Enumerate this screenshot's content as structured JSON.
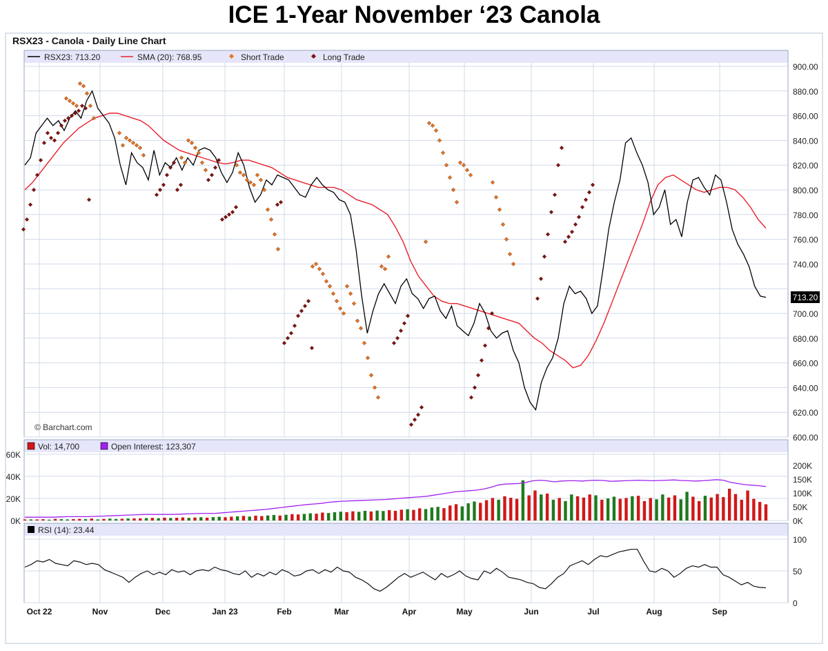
{
  "page": {
    "title": "ICE 1-Year November ‘23 Canola"
  },
  "chart": {
    "header": "RSX23 - Canola - Daily Line Chart",
    "copyright": "© Barchart.com",
    "last_price_badge": "713.20",
    "colors": {
      "price": "#000000",
      "sma": "#e8202a",
      "short_trade": "#e8741e",
      "long_trade": "#7a1414",
      "open_interest": "#a020f0",
      "vol_up": "#1f7a1f",
      "vol_down": "#d01818",
      "legend_bg": "#e6e6fa",
      "grid": "#d0d8e8"
    }
  },
  "chart_data": [
    {
      "type": "line",
      "title": "RSX23 - Canola - Daily Line Chart",
      "legend": [
        "RSX23: 713.20",
        "SMA (20): 768.95",
        "Short Trade",
        "Long Trade"
      ],
      "legend_placement": "top",
      "x_ticks": [
        "Oct 22",
        "Nov",
        "Dec",
        "Jan 23",
        "Feb",
        "Mar",
        "Apr",
        "May",
        "Jun",
        "Jul",
        "Aug",
        "Sep"
      ],
      "y_ticks": [
        "900.00",
        "880.00",
        "860.00",
        "840.00",
        "820.00",
        "800.00",
        "780.00",
        "760.00",
        "740.00",
        "720.00",
        "700.00",
        "680.00",
        "660.00",
        "640.00",
        "620.00",
        "600.00"
      ],
      "ylim": [
        600,
        900
      ],
      "grid": true,
      "series": [
        {
          "name": "RSX23: 713.20",
          "kind": "price",
          "values": [
            820,
            826,
            846,
            852,
            858,
            852,
            856,
            848,
            858,
            864,
            858,
            872,
            880,
            866,
            860,
            854,
            842,
            820,
            804,
            830,
            822,
            818,
            808,
            832,
            812,
            822,
            818,
            826,
            816,
            826,
            820,
            832,
            834,
            832,
            826,
            814,
            806,
            814,
            830,
            820,
            802,
            790,
            796,
            808,
            804,
            812,
            810,
            808,
            802,
            796,
            794,
            804,
            810,
            804,
            800,
            798,
            792,
            790,
            780,
            752,
            714,
            684,
            702,
            716,
            724,
            716,
            708,
            722,
            728,
            716,
            712,
            704,
            712,
            714,
            702,
            696,
            706,
            690,
            686,
            682,
            692,
            708,
            700,
            686,
            680,
            684,
            686,
            670,
            660,
            640,
            628,
            622,
            644,
            656,
            664,
            680,
            708,
            722,
            716,
            718,
            712,
            700,
            706,
            736,
            768,
            790,
            808,
            838,
            842,
            830,
            820,
            806,
            780,
            786,
            800,
            772,
            776,
            762,
            790,
            808,
            810,
            802,
            796,
            812,
            808,
            790,
            768,
            756,
            748,
            738,
            722,
            714,
            713
          ]
        },
        {
          "name": "SMA (20): 768.95",
          "kind": "sma",
          "values": [
            800,
            806,
            814,
            822,
            830,
            838,
            844,
            850,
            854,
            858,
            860,
            862,
            862,
            860,
            858,
            856,
            852,
            846,
            840,
            836,
            832,
            830,
            828,
            826,
            824,
            822,
            821,
            822,
            824,
            824,
            822,
            820,
            818,
            814,
            810,
            808,
            806,
            804,
            802,
            802,
            802,
            800,
            796,
            792,
            790,
            788,
            784,
            780,
            770,
            758,
            742,
            730,
            722,
            714,
            710,
            708,
            708,
            706,
            704,
            702,
            700,
            698,
            696,
            694,
            692,
            686,
            680,
            676,
            670,
            666,
            662,
            656,
            658,
            666,
            678,
            692,
            708,
            724,
            740,
            756,
            772,
            790,
            804,
            810,
            812,
            808,
            804,
            800,
            798,
            800,
            802,
            802,
            800,
            794,
            786,
            776,
            769
          ]
        },
        {
          "name": "Short Trade",
          "kind": "short",
          "values": [
            874,
            872,
            870,
            868,
            886,
            884,
            878,
            868,
            858,
            846,
            836,
            842,
            840,
            838,
            836,
            834,
            828,
            826,
            822,
            840,
            838,
            834,
            830,
            822,
            816,
            820,
            814,
            812,
            808,
            806,
            804,
            812,
            808,
            800,
            784,
            776,
            764,
            752,
            738,
            740,
            736,
            732,
            726,
            722,
            716,
            710,
            704,
            700,
            722,
            716,
            708,
            694,
            688,
            676,
            664,
            650,
            640,
            632,
            738,
            736,
            746,
            758,
            854,
            852,
            848,
            840,
            830,
            820,
            810,
            800,
            790,
            822,
            820,
            816,
            812,
            806,
            794,
            784,
            772,
            760,
            748,
            740
          ]
        },
        {
          "name": "Long Trade",
          "kind": "long",
          "values": [
            768,
            776,
            788,
            800,
            812,
            824,
            838,
            846,
            842,
            840,
            846,
            852,
            856,
            858,
            860,
            862,
            864,
            868,
            866,
            792,
            796,
            800,
            804,
            812,
            818,
            822,
            800,
            804,
            808,
            812,
            818,
            824,
            776,
            778,
            780,
            782,
            786,
            788,
            790,
            676,
            680,
            684,
            690,
            698,
            702,
            706,
            710,
            672,
            676,
            680,
            686,
            692,
            698,
            610,
            614,
            618,
            624,
            632,
            640,
            650,
            662,
            674,
            688,
            700,
            712,
            728,
            746,
            764,
            782,
            796,
            820,
            834,
            758,
            762,
            766,
            772,
            778,
            786,
            792,
            798,
            804
          ]
        }
      ]
    },
    {
      "type": "bar",
      "title": "",
      "legend": [
        "Vol: 14,700",
        "Open Interest: 123,307"
      ],
      "y_ticks_left": [
        "60K",
        "40K",
        "20K",
        "0K"
      ],
      "y_ticks_right": [
        "200K",
        "150K",
        "100K",
        "50K",
        "0K"
      ],
      "ylim_volume": [
        0,
        60000
      ],
      "ylim_open_interest": [
        0,
        240000
      ],
      "series": [
        {
          "name": "Vol: 14,700",
          "values": [
            1000,
            1000,
            1000,
            1200,
            800,
            1500,
            1200,
            1000,
            1300,
            1500,
            1200,
            1800,
            1000,
            1500,
            1700,
            1400,
            1600,
            1800,
            1900,
            2000,
            2200,
            2400,
            2100,
            2600,
            2300,
            2500,
            2800,
            2400,
            2700,
            3000,
            2600,
            3100,
            3400,
            3000,
            3500,
            3800,
            4200,
            3600,
            4400,
            4000,
            4600,
            5000,
            4500,
            5200,
            5800,
            5500,
            6000,
            6500,
            6200,
            7200,
            6800,
            7500,
            8000,
            7600,
            8300,
            7900,
            8800,
            8200,
            9000,
            8600,
            9400,
            8800,
            9800,
            10200,
            9600,
            11000,
            10400,
            11800,
            12400,
            11200,
            13600,
            14800,
            12800,
            15600,
            17200,
            16000,
            18400,
            20400,
            18800,
            22000,
            20600,
            19600,
            36400,
            22800,
            27200,
            23600,
            24400,
            18800,
            20400,
            17600,
            23600,
            22000,
            20800,
            23600,
            22800,
            18800,
            20000,
            21600,
            19600,
            20400,
            22000,
            22400,
            17600,
            20400,
            19200,
            23600,
            20800,
            22800,
            19200,
            26000,
            21600,
            17600,
            22400,
            20800,
            24000,
            21200,
            28800,
            24000,
            18800,
            27200,
            19600,
            16800,
            14700
          ]
        },
        {
          "name": "Open Interest: 123,307",
          "values": [
            12000,
            12000,
            12000,
            12000,
            12000,
            13000,
            14000,
            14000,
            14000,
            14000,
            15000,
            16000,
            17000,
            18000,
            19000,
            20000,
            21000,
            22000,
            22000,
            22000,
            22000,
            22000,
            23000,
            24000,
            25000,
            26000,
            26000,
            26000,
            28000,
            30000,
            32000,
            34000,
            36000,
            38000,
            40000,
            43000,
            46000,
            49000,
            52000,
            55000,
            58000,
            60000,
            62000,
            66000,
            68000,
            70000,
            71000,
            72000,
            73000,
            74000,
            75000,
            76000,
            78000,
            80000,
            82000,
            84000,
            86000,
            88000,
            92000,
            96000,
            100000,
            104000,
            106000,
            108000,
            110000,
            114000,
            120000,
            128000,
            132000,
            133000,
            134000,
            138000,
            144000,
            146000,
            144000,
            140000,
            143000,
            144000,
            144000,
            143000,
            145000,
            146000,
            145000,
            142000,
            143000,
            144000,
            145000,
            146000,
            145000,
            144000,
            145000,
            146000,
            147000,
            145000,
            144000,
            143000,
            144000,
            146000,
            148000,
            146000,
            138000,
            134000,
            130000,
            128000,
            126000,
            123307
          ]
        },
        {
          "name": "up_down",
          "values": [
            "d",
            "u",
            "d",
            "d",
            "u",
            "d",
            "u",
            "u",
            "d",
            "d",
            "u",
            "d",
            "u",
            "d",
            "u",
            "u",
            "d",
            "u",
            "d",
            "d",
            "u",
            "d",
            "u",
            "d",
            "u",
            "d",
            "d",
            "u",
            "d",
            "u",
            "d",
            "u",
            "u",
            "d",
            "d",
            "u",
            "d",
            "u",
            "d",
            "d",
            "u",
            "u",
            "d",
            "u",
            "d",
            "d",
            "u",
            "u",
            "d",
            "d",
            "u",
            "u",
            "u",
            "d",
            "d",
            "u",
            "u",
            "d",
            "u",
            "u",
            "d",
            "d",
            "d",
            "u",
            "d",
            "d",
            "u",
            "u",
            "u",
            "d",
            "d",
            "d",
            "u",
            "u",
            "u",
            "d",
            "d",
            "d",
            "u",
            "d",
            "d",
            "d",
            "u",
            "d",
            "d",
            "u",
            "d",
            "u",
            "d",
            "u",
            "u",
            "d",
            "d",
            "d",
            "u",
            "d",
            "u",
            "u",
            "d",
            "d",
            "u",
            "d",
            "d",
            "d",
            "u",
            "u",
            "d",
            "d",
            "u",
            "u",
            "d",
            "d",
            "u",
            "d",
            "d",
            "d",
            "d",
            "d",
            "d",
            "d",
            "d",
            "d",
            "d"
          ]
        }
      ]
    },
    {
      "type": "line",
      "title": "",
      "legend": [
        "RSI (14): 23.44"
      ],
      "y_ticks": [
        "100",
        "50",
        "0"
      ],
      "ylim": [
        0,
        100
      ],
      "series": [
        {
          "name": "RSI (14): 23.44",
          "values": [
            56,
            60,
            66,
            64,
            68,
            62,
            60,
            58,
            66,
            64,
            60,
            62,
            60,
            52,
            48,
            44,
            40,
            32,
            40,
            46,
            50,
            44,
            48,
            44,
            52,
            48,
            50,
            44,
            50,
            52,
            50,
            56,
            52,
            50,
            46,
            44,
            50,
            40,
            46,
            42,
            48,
            44,
            52,
            48,
            42,
            44,
            50,
            52,
            46,
            52,
            48,
            56,
            50,
            48,
            40,
            36,
            30,
            22,
            18,
            24,
            32,
            40,
            46,
            40,
            44,
            48,
            42,
            36,
            46,
            40,
            44,
            50,
            42,
            38,
            36,
            50,
            46,
            54,
            48,
            40,
            38,
            36,
            32,
            30,
            24,
            22,
            30,
            40,
            46,
            58,
            62,
            66,
            60,
            68,
            74,
            72,
            76,
            80,
            82,
            84,
            84,
            66,
            50,
            48,
            54,
            50,
            40,
            46,
            54,
            58,
            56,
            60,
            56,
            56,
            44,
            40,
            34,
            28,
            32,
            26,
            24,
            23.44
          ]
        }
      ]
    }
  ]
}
